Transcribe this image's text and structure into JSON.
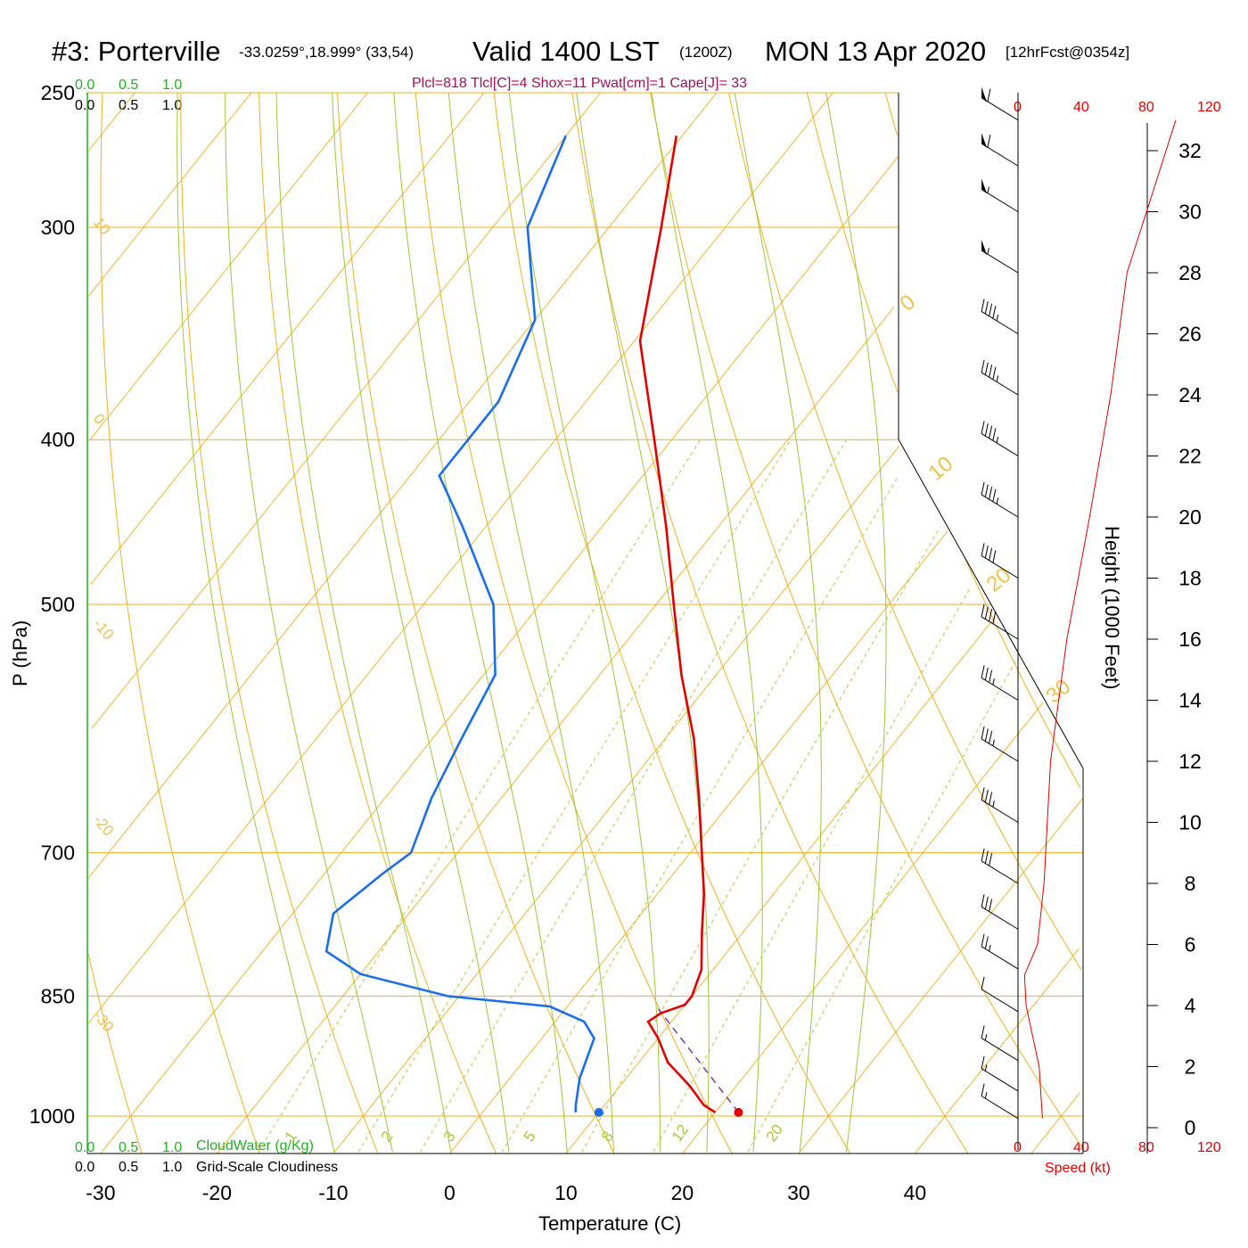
{
  "title": {
    "station": "#3: Porterville",
    "coords": "-33.0259°,18.999° (33,54)",
    "valid": "Valid 1400 LST",
    "zulu": "(1200Z)",
    "date": "MON 13 Apr 2020",
    "forecast": "[12hrFcst@0354z]"
  },
  "stats_line": "Plcl=818 Tlcl[C]=4 Shox=11 Pwat[cm]=1 Cape[J]= 33",
  "scales": {
    "cloudwater_ticks_top": [
      "0.0",
      "0.5",
      "1.0"
    ],
    "cloudiness_ticks_top": [
      "0.0",
      "0.5",
      "1.0"
    ],
    "cloudwater_ticks_bottom": [
      "0.0",
      "0.5",
      "1.0"
    ],
    "cloudiness_ticks_bottom": [
      "0.0",
      "0.5",
      "1.0"
    ],
    "cloudwater_label": "CloudWater (g/Kg)",
    "cloudiness_label": "Grid-Scale Cloudiness",
    "speed_ticks": [
      "0",
      "40",
      "80",
      "120"
    ],
    "speed_label": "Speed (kt)"
  },
  "colors": {
    "temperature": "#e00000",
    "dewpoint": "#1a6ee8",
    "isotherm": "#f0b020",
    "moist_adiabat": "#9cc83a",
    "mixing_ratio": "#a8d040",
    "cloud_scale": "#22b022",
    "speed": "#e00000",
    "stats": "#a0105c",
    "parcel": "#7020a0"
  },
  "chart_data": {
    "type": "line",
    "xlabel": "Temperature (C)",
    "ylabel": "P (hPa)",
    "y2label": "Height (1000 Feet)",
    "pressure_ticks": [
      250,
      300,
      400,
      500,
      700,
      850,
      1000
    ],
    "temperature_ticks": [
      -30,
      -20,
      -10,
      0,
      10,
      20,
      30,
      40
    ],
    "height_ticks": [
      0,
      2,
      4,
      6,
      8,
      10,
      12,
      14,
      16,
      18,
      20,
      22,
      24,
      26,
      28,
      30,
      32
    ],
    "ylim_hpa": [
      1050,
      250
    ],
    "xlim_c": [
      -33,
      36
    ],
    "isotherm_labels": [
      "10",
      "0",
      "-10",
      "-20",
      "-30"
    ],
    "dry_adiabat_labels": [
      "0",
      "10",
      "20",
      "30"
    ],
    "mixing_ratio_labels": [
      "1",
      "2",
      "3",
      "5",
      "8",
      "12",
      "20"
    ],
    "series": [
      {
        "name": "Temperature",
        "points": [
          {
            "p": 995,
            "t": 20.0
          },
          {
            "p": 985,
            "t": 18.5
          },
          {
            "p": 960,
            "t": 16.0
          },
          {
            "p": 930,
            "t": 12.5
          },
          {
            "p": 900,
            "t": 10.0
          },
          {
            "p": 880,
            "t": 8.0
          },
          {
            "p": 870,
            "t": 8.5
          },
          {
            "p": 860,
            "t": 10.0
          },
          {
            "p": 850,
            "t": 10.0
          },
          {
            "p": 820,
            "t": 9.0
          },
          {
            "p": 780,
            "t": 6.5
          },
          {
            "p": 740,
            "t": 4.0
          },
          {
            "p": 700,
            "t": 1.0
          },
          {
            "p": 650,
            "t": -3.0
          },
          {
            "p": 600,
            "t": -7.5
          },
          {
            "p": 550,
            "t": -13.0
          },
          {
            "p": 500,
            "t": -18.5
          },
          {
            "p": 450,
            "t": -24.5
          },
          {
            "p": 400,
            "t": -31.5
          },
          {
            "p": 350,
            "t": -39.5
          },
          {
            "p": 300,
            "t": -45.5
          },
          {
            "p": 265,
            "t": -50.5
          }
        ]
      },
      {
        "name": "Dewpoint",
        "points": [
          {
            "p": 995,
            "t": 8.0
          },
          {
            "p": 985,
            "t": 7.5
          },
          {
            "p": 950,
            "t": 6.0
          },
          {
            "p": 900,
            "t": 4.5
          },
          {
            "p": 880,
            "t": 2.5
          },
          {
            "p": 862,
            "t": -1.5
          },
          {
            "p": 850,
            "t": -11.0
          },
          {
            "p": 825,
            "t": -20.0
          },
          {
            "p": 800,
            "t": -24.5
          },
          {
            "p": 760,
            "t": -26.5
          },
          {
            "p": 720,
            "t": -25.0
          },
          {
            "p": 700,
            "t": -24.0
          },
          {
            "p": 650,
            "t": -26.0
          },
          {
            "p": 600,
            "t": -27.5
          },
          {
            "p": 550,
            "t": -29.0
          },
          {
            "p": 500,
            "t": -34.0
          },
          {
            "p": 450,
            "t": -42.0
          },
          {
            "p": 420,
            "t": -47.5
          },
          {
            "p": 380,
            "t": -47.5
          },
          {
            "p": 340,
            "t": -50.0
          },
          {
            "p": 300,
            "t": -57.0
          },
          {
            "p": 265,
            "t": -60.0
          }
        ]
      }
    ],
    "surface": {
      "t": 22.0,
      "td": 10.0
    },
    "parcel_path": [
      {
        "p": 995,
        "t": 22.0
      },
      {
        "p": 865,
        "t": 8.0
      }
    ],
    "wind_barbs": [
      {
        "h_kft": 0.3,
        "spd_kt": 15
      },
      {
        "h_kft": 1.2,
        "spd_kt": 15
      },
      {
        "h_kft": 2.2,
        "spd_kt": 15
      },
      {
        "h_kft": 3.8,
        "spd_kt": 10
      },
      {
        "h_kft": 5.2,
        "spd_kt": 25
      },
      {
        "h_kft": 6.5,
        "spd_kt": 30
      },
      {
        "h_kft": 8.0,
        "spd_kt": 30
      },
      {
        "h_kft": 10.0,
        "spd_kt": 35
      },
      {
        "h_kft": 12.0,
        "spd_kt": 35
      },
      {
        "h_kft": 14.0,
        "spd_kt": 35
      },
      {
        "h_kft": 16.0,
        "spd_kt": 40
      },
      {
        "h_kft": 18.0,
        "spd_kt": 40
      },
      {
        "h_kft": 20.0,
        "spd_kt": 45
      },
      {
        "h_kft": 22.0,
        "spd_kt": 45
      },
      {
        "h_kft": 24.0,
        "spd_kt": 45
      },
      {
        "h_kft": 26.0,
        "spd_kt": 45
      },
      {
        "h_kft": 28.0,
        "spd_kt": 55
      },
      {
        "h_kft": 30.0,
        "spd_kt": 55
      },
      {
        "h_kft": 31.5,
        "spd_kt": 60
      },
      {
        "h_kft": 33.0,
        "spd_kt": 60
      }
    ],
    "wind_speed_profile": [
      {
        "h_kft": 0.3,
        "spd_kt": 15
      },
      {
        "h_kft": 2.0,
        "spd_kt": 13
      },
      {
        "h_kft": 4.0,
        "spd_kt": 5
      },
      {
        "h_kft": 5.0,
        "spd_kt": 4
      },
      {
        "h_kft": 6.0,
        "spd_kt": 12
      },
      {
        "h_kft": 8.0,
        "spd_kt": 16
      },
      {
        "h_kft": 12.0,
        "spd_kt": 20
      },
      {
        "h_kft": 16.0,
        "spd_kt": 30
      },
      {
        "h_kft": 20.0,
        "spd_kt": 44
      },
      {
        "h_kft": 24.0,
        "spd_kt": 57
      },
      {
        "h_kft": 28.0,
        "spd_kt": 67
      },
      {
        "h_kft": 33.0,
        "spd_kt": 97
      }
    ]
  }
}
